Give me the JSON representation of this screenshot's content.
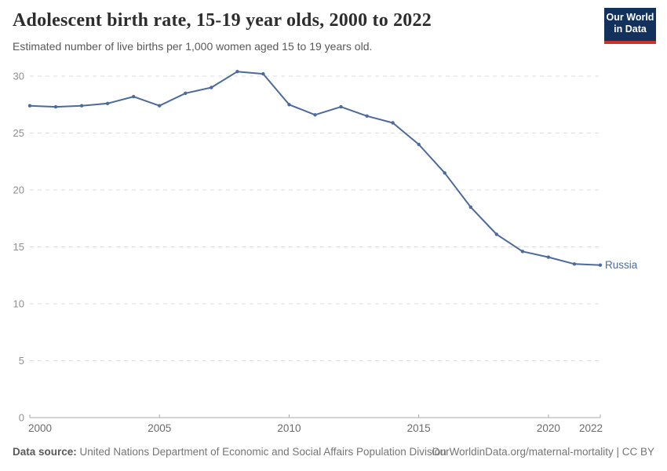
{
  "header": {
    "title": "Adolescent birth rate, 15-19 year olds, 2000 to 2022",
    "subtitle": "Estimated number of live births per 1,000 women aged 15 to 19 years old.",
    "logo": {
      "line1": "Our World",
      "line2": "in Data"
    }
  },
  "chart_data": {
    "type": "line",
    "title": "Adolescent birth rate, 15-19 year olds, 2000 to 2022",
    "xlabel": "",
    "ylabel": "",
    "xlim": [
      2000,
      2022
    ],
    "ylim": [
      0,
      30
    ],
    "x_ticks": [
      2000,
      2005,
      2010,
      2015,
      2020,
      2022
    ],
    "y_ticks": [
      0,
      5,
      10,
      15,
      20,
      25,
      30
    ],
    "grid": "dashed-horizontal",
    "legend_position": "end-of-line-label",
    "x": [
      2000,
      2001,
      2002,
      2003,
      2004,
      2005,
      2006,
      2007,
      2008,
      2009,
      2010,
      2011,
      2012,
      2013,
      2014,
      2015,
      2016,
      2017,
      2018,
      2019,
      2020,
      2021,
      2022
    ],
    "series": [
      {
        "name": "Russia",
        "color": "#4C6A9C",
        "values": [
          27.4,
          27.3,
          27.4,
          27.6,
          28.2,
          27.4,
          28.5,
          29.0,
          30.4,
          30.2,
          27.5,
          26.6,
          27.3,
          26.5,
          25.9,
          24.0,
          21.5,
          18.5,
          16.1,
          14.6,
          14.1,
          13.5,
          13.4
        ]
      }
    ]
  },
  "footer": {
    "source_label": "Data source:",
    "source_text": "United Nations Department of Economic and Social Affairs Population Division",
    "url_text": "OurWorldinData.org/maternal-mortality | CC BY"
  },
  "colors": {
    "line": "#4C6A9C",
    "grid": "#dcdcdc",
    "axis": "#a8a8a8",
    "y_tick_label": "#8f8f8f",
    "x_tick_label": "#6b6b6b",
    "logo_bg": "#12315c",
    "logo_red": "#cf3127",
    "title_text": "#2d2d2d",
    "subtitle_text": "#595959",
    "footer_text": "#757575"
  }
}
